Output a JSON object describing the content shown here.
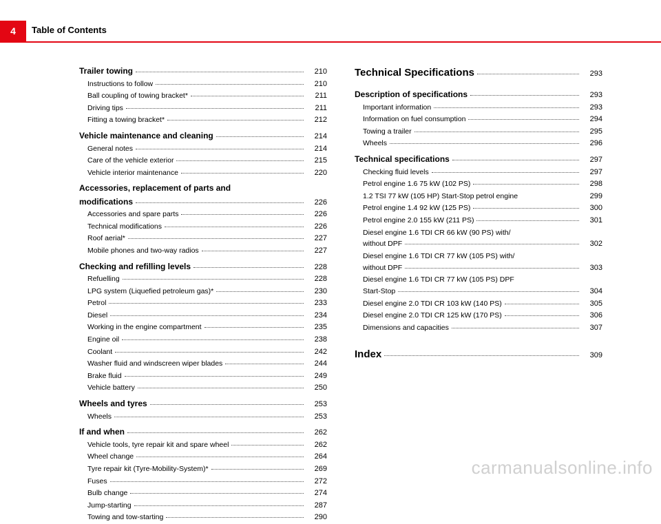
{
  "meta": {
    "page_number": "4",
    "header_title": "Table of Contents",
    "watermark": "carmanualsonline.info",
    "colors": {
      "accent": "#e30613",
      "text": "#000000",
      "watermark": "#d0d0d0",
      "background": "#ffffff"
    }
  },
  "col1": [
    {
      "type": "section",
      "label": "Trailer towing",
      "page": "210"
    },
    {
      "type": "sub",
      "label": "Instructions to follow",
      "page": "210"
    },
    {
      "type": "sub",
      "label": "Ball coupling of towing bracket*",
      "page": "211"
    },
    {
      "type": "sub",
      "label": "Driving tips",
      "page": "211"
    },
    {
      "type": "sub",
      "label": "Fitting a towing bracket*",
      "page": "212"
    },
    {
      "type": "gap4"
    },
    {
      "type": "section",
      "label": "Vehicle maintenance and cleaning",
      "page": "214"
    },
    {
      "type": "sub",
      "label": "General notes",
      "page": "214"
    },
    {
      "type": "sub",
      "label": "Care of the vehicle exterior",
      "page": "215"
    },
    {
      "type": "sub",
      "label": "Vehicle interior maintenance",
      "page": "220"
    },
    {
      "type": "gap4"
    },
    {
      "type": "section-noline",
      "label": "Accessories, replacement of parts and"
    },
    {
      "type": "section",
      "label": "modifications",
      "page": "226"
    },
    {
      "type": "sub",
      "label": "Accessories and spare parts",
      "page": "226"
    },
    {
      "type": "sub",
      "label": "Technical modifications",
      "page": "226"
    },
    {
      "type": "sub",
      "label": "Roof aerial*",
      "page": "227"
    },
    {
      "type": "sub",
      "label": "Mobile phones and two-way radios",
      "page": "227"
    },
    {
      "type": "gap4"
    },
    {
      "type": "section",
      "label": "Checking and refilling levels",
      "page": "228"
    },
    {
      "type": "sub",
      "label": "Refuelling",
      "page": "228"
    },
    {
      "type": "sub",
      "label": "LPG system (Liquefied petroleum gas)*",
      "page": "230"
    },
    {
      "type": "sub",
      "label": "Petrol",
      "page": "233"
    },
    {
      "type": "sub",
      "label": "Diesel",
      "page": "234"
    },
    {
      "type": "sub",
      "label": "Working in the engine compartment",
      "page": "235"
    },
    {
      "type": "sub",
      "label": "Engine oil",
      "page": "238"
    },
    {
      "type": "sub",
      "label": "Coolant",
      "page": "242"
    },
    {
      "type": "sub",
      "label": "Washer fluid and windscreen wiper blades",
      "page": "244"
    },
    {
      "type": "sub",
      "label": "Brake fluid",
      "page": "249"
    },
    {
      "type": "sub",
      "label": "Vehicle battery",
      "page": "250"
    },
    {
      "type": "gap4"
    },
    {
      "type": "section",
      "label": "Wheels and tyres",
      "page": "253"
    },
    {
      "type": "sub",
      "label": "Wheels",
      "page": "253"
    },
    {
      "type": "gap4"
    },
    {
      "type": "section",
      "label": "If and when",
      "page": "262"
    },
    {
      "type": "sub",
      "label": "Vehicle tools, tyre repair kit and spare wheel",
      "page": "262"
    },
    {
      "type": "sub",
      "label": "Wheel change",
      "page": "264"
    },
    {
      "type": "sub",
      "label": "Tyre repair kit (Tyre-Mobility-System)*",
      "page": "269"
    },
    {
      "type": "sub",
      "label": "Fuses",
      "page": "272"
    },
    {
      "type": "sub",
      "label": "Bulb change",
      "page": "274"
    },
    {
      "type": "sub",
      "label": "Jump-starting",
      "page": "287"
    },
    {
      "type": "sub",
      "label": "Towing and tow-starting",
      "page": "290"
    }
  ],
  "col2": [
    {
      "type": "chapter",
      "label": "Technical Specifications",
      "page": "293"
    },
    {
      "type": "gap10"
    },
    {
      "type": "section",
      "label": "Description of specifications",
      "page": "293"
    },
    {
      "type": "sub",
      "label": "Important information",
      "page": "293"
    },
    {
      "type": "sub",
      "label": "Information on fuel consumption",
      "page": "294"
    },
    {
      "type": "sub",
      "label": "Towing a trailer",
      "page": "295"
    },
    {
      "type": "sub",
      "label": "Wheels",
      "page": "296"
    },
    {
      "type": "gap4"
    },
    {
      "type": "section",
      "label": "Technical specifications",
      "page": "297"
    },
    {
      "type": "sub",
      "label": "Checking fluid levels",
      "page": "297"
    },
    {
      "type": "sub",
      "label": "Petrol engine 1.6 75 kW (102 PS)",
      "page": "298"
    },
    {
      "type": "sub-nodots",
      "label": "1.2 TSI 77 kW (105 HP) Start-Stop petrol engine",
      "page": "299"
    },
    {
      "type": "sub",
      "label": "Petrol engine 1.4 92 kW (125 PS)",
      "page": "300"
    },
    {
      "type": "sub",
      "label": "Petrol engine 2.0 155 kW (211 PS)",
      "page": "301"
    },
    {
      "type": "sub-noline",
      "label": "Diesel engine 1.6 TDI CR 66 kW (90 PS) with/"
    },
    {
      "type": "sub",
      "label": "without DPF",
      "page": "302"
    },
    {
      "type": "sub-noline",
      "label": "Diesel engine 1.6 TDI CR 77 kW (105 PS) with/"
    },
    {
      "type": "sub",
      "label": "without DPF",
      "page": "303"
    },
    {
      "type": "sub-noline",
      "label": "Diesel engine 1.6 TDI CR 77 kW (105 PS) DPF"
    },
    {
      "type": "sub",
      "label": "Start-Stop",
      "page": "304"
    },
    {
      "type": "sub",
      "label": "Diesel engine 2.0 TDI CR 103 kW (140 PS)",
      "page": "305"
    },
    {
      "type": "sub",
      "label": "Diesel engine 2.0 TDI CR 125 kW (170 PS)",
      "page": "306"
    },
    {
      "type": "sub",
      "label": "Dimensions and capacities",
      "page": "307"
    },
    {
      "type": "gap18"
    },
    {
      "type": "chapter",
      "label": "Index",
      "page": "309"
    }
  ]
}
